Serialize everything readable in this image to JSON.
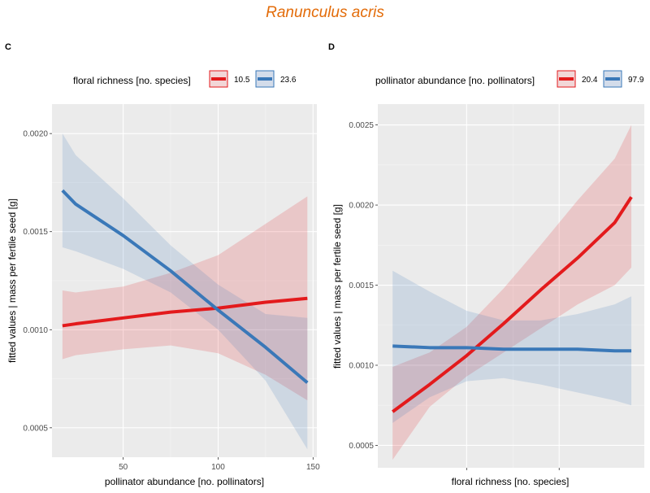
{
  "figure_title": "Ranunculus acris",
  "title_color": "#e36c0a",
  "chart_data": [
    {
      "type": "line",
      "tag": "C",
      "xlabel": "pollinator abundance [no. pollinators]",
      "ylabel": "fitted values | mass per fertile seed [g]",
      "xlim": [
        12.5,
        152
      ],
      "ylim": [
        0.00035,
        0.00215
      ],
      "x_ticks": [
        50,
        100,
        150
      ],
      "x_tick_labels": [
        "50",
        "100",
        "150"
      ],
      "y_ticks": [
        0.0005,
        0.001,
        0.0015,
        0.002
      ],
      "y_tick_labels": [
        "0.0005",
        "0.0010",
        "0.0015",
        "0.0020"
      ],
      "grid": true,
      "legend_title": "floral richness [no. species]",
      "legend_position": "top",
      "series": [
        {
          "name": "10.5",
          "color": "#e31a1c",
          "x": [
            18,
            25,
            50,
            75,
            100,
            125,
            147
          ],
          "y": [
            0.00102,
            0.00103,
            0.00106,
            0.00109,
            0.00111,
            0.00114,
            0.00116
          ],
          "lower": [
            0.00085,
            0.00087,
            0.0009,
            0.00092,
            0.00088,
            0.00077,
            0.00064
          ],
          "upper": [
            0.0012,
            0.00119,
            0.00122,
            0.00129,
            0.00138,
            0.00154,
            0.00168
          ]
        },
        {
          "name": "23.6",
          "color": "#3a78b8",
          "x": [
            18,
            25,
            50,
            75,
            100,
            125,
            147
          ],
          "y": [
            0.00171,
            0.00164,
            0.00148,
            0.0013,
            0.0011,
            0.00091,
            0.00073
          ],
          "lower": [
            0.00142,
            0.0014,
            0.00131,
            0.00119,
            0.001,
            0.00074,
            0.00039
          ],
          "upper": [
            0.002,
            0.00189,
            0.00167,
            0.00143,
            0.00123,
            0.00108,
            0.00106
          ]
        }
      ]
    },
    {
      "type": "line",
      "tag": "D",
      "xlabel": "floral richness [no. species]",
      "ylabel": "fitted values | mass per fertile seed [g]",
      "xlim": [
        10.2,
        24.6
      ],
      "ylim": [
        0.00036,
        0.00263
      ],
      "x_ticks": [
        15,
        20
      ],
      "x_tick_labels": [
        "",
        ""
      ],
      "y_ticks": [
        0.0005,
        0.001,
        0.0015,
        0.002,
        0.0025
      ],
      "y_tick_labels": [
        "0.0005",
        "0.0010",
        "0.0015",
        "0.0020",
        "0.0025"
      ],
      "grid": true,
      "legend_title": "pollinator abundance [no. pollinators]",
      "legend_position": "top",
      "series": [
        {
          "name": "20.4",
          "color": "#e31a1c",
          "x": [
            11,
            13,
            15,
            17,
            19,
            21,
            23,
            23.9
          ],
          "y": [
            0.00071,
            0.00088,
            0.00106,
            0.00126,
            0.00147,
            0.00167,
            0.00189,
            0.00205
          ],
          "lower": [
            0.00041,
            0.00074,
            0.00093,
            0.00108,
            0.00123,
            0.00138,
            0.0015,
            0.00161
          ],
          "upper": [
            0.00099,
            0.00108,
            0.00124,
            0.00148,
            0.00175,
            0.00203,
            0.00229,
            0.0025
          ]
        },
        {
          "name": "97.9",
          "color": "#3a78b8",
          "x": [
            11,
            13,
            15,
            17,
            19,
            21,
            23,
            23.9
          ],
          "y": [
            0.00112,
            0.00111,
            0.00111,
            0.0011,
            0.0011,
            0.0011,
            0.00109,
            0.00109
          ],
          "lower": [
            0.00064,
            0.0008,
            0.0009,
            0.00092,
            0.00088,
            0.00083,
            0.00078,
            0.00075
          ],
          "upper": [
            0.00159,
            0.00146,
            0.00134,
            0.00128,
            0.00128,
            0.00132,
            0.00138,
            0.00143
          ]
        }
      ]
    }
  ]
}
